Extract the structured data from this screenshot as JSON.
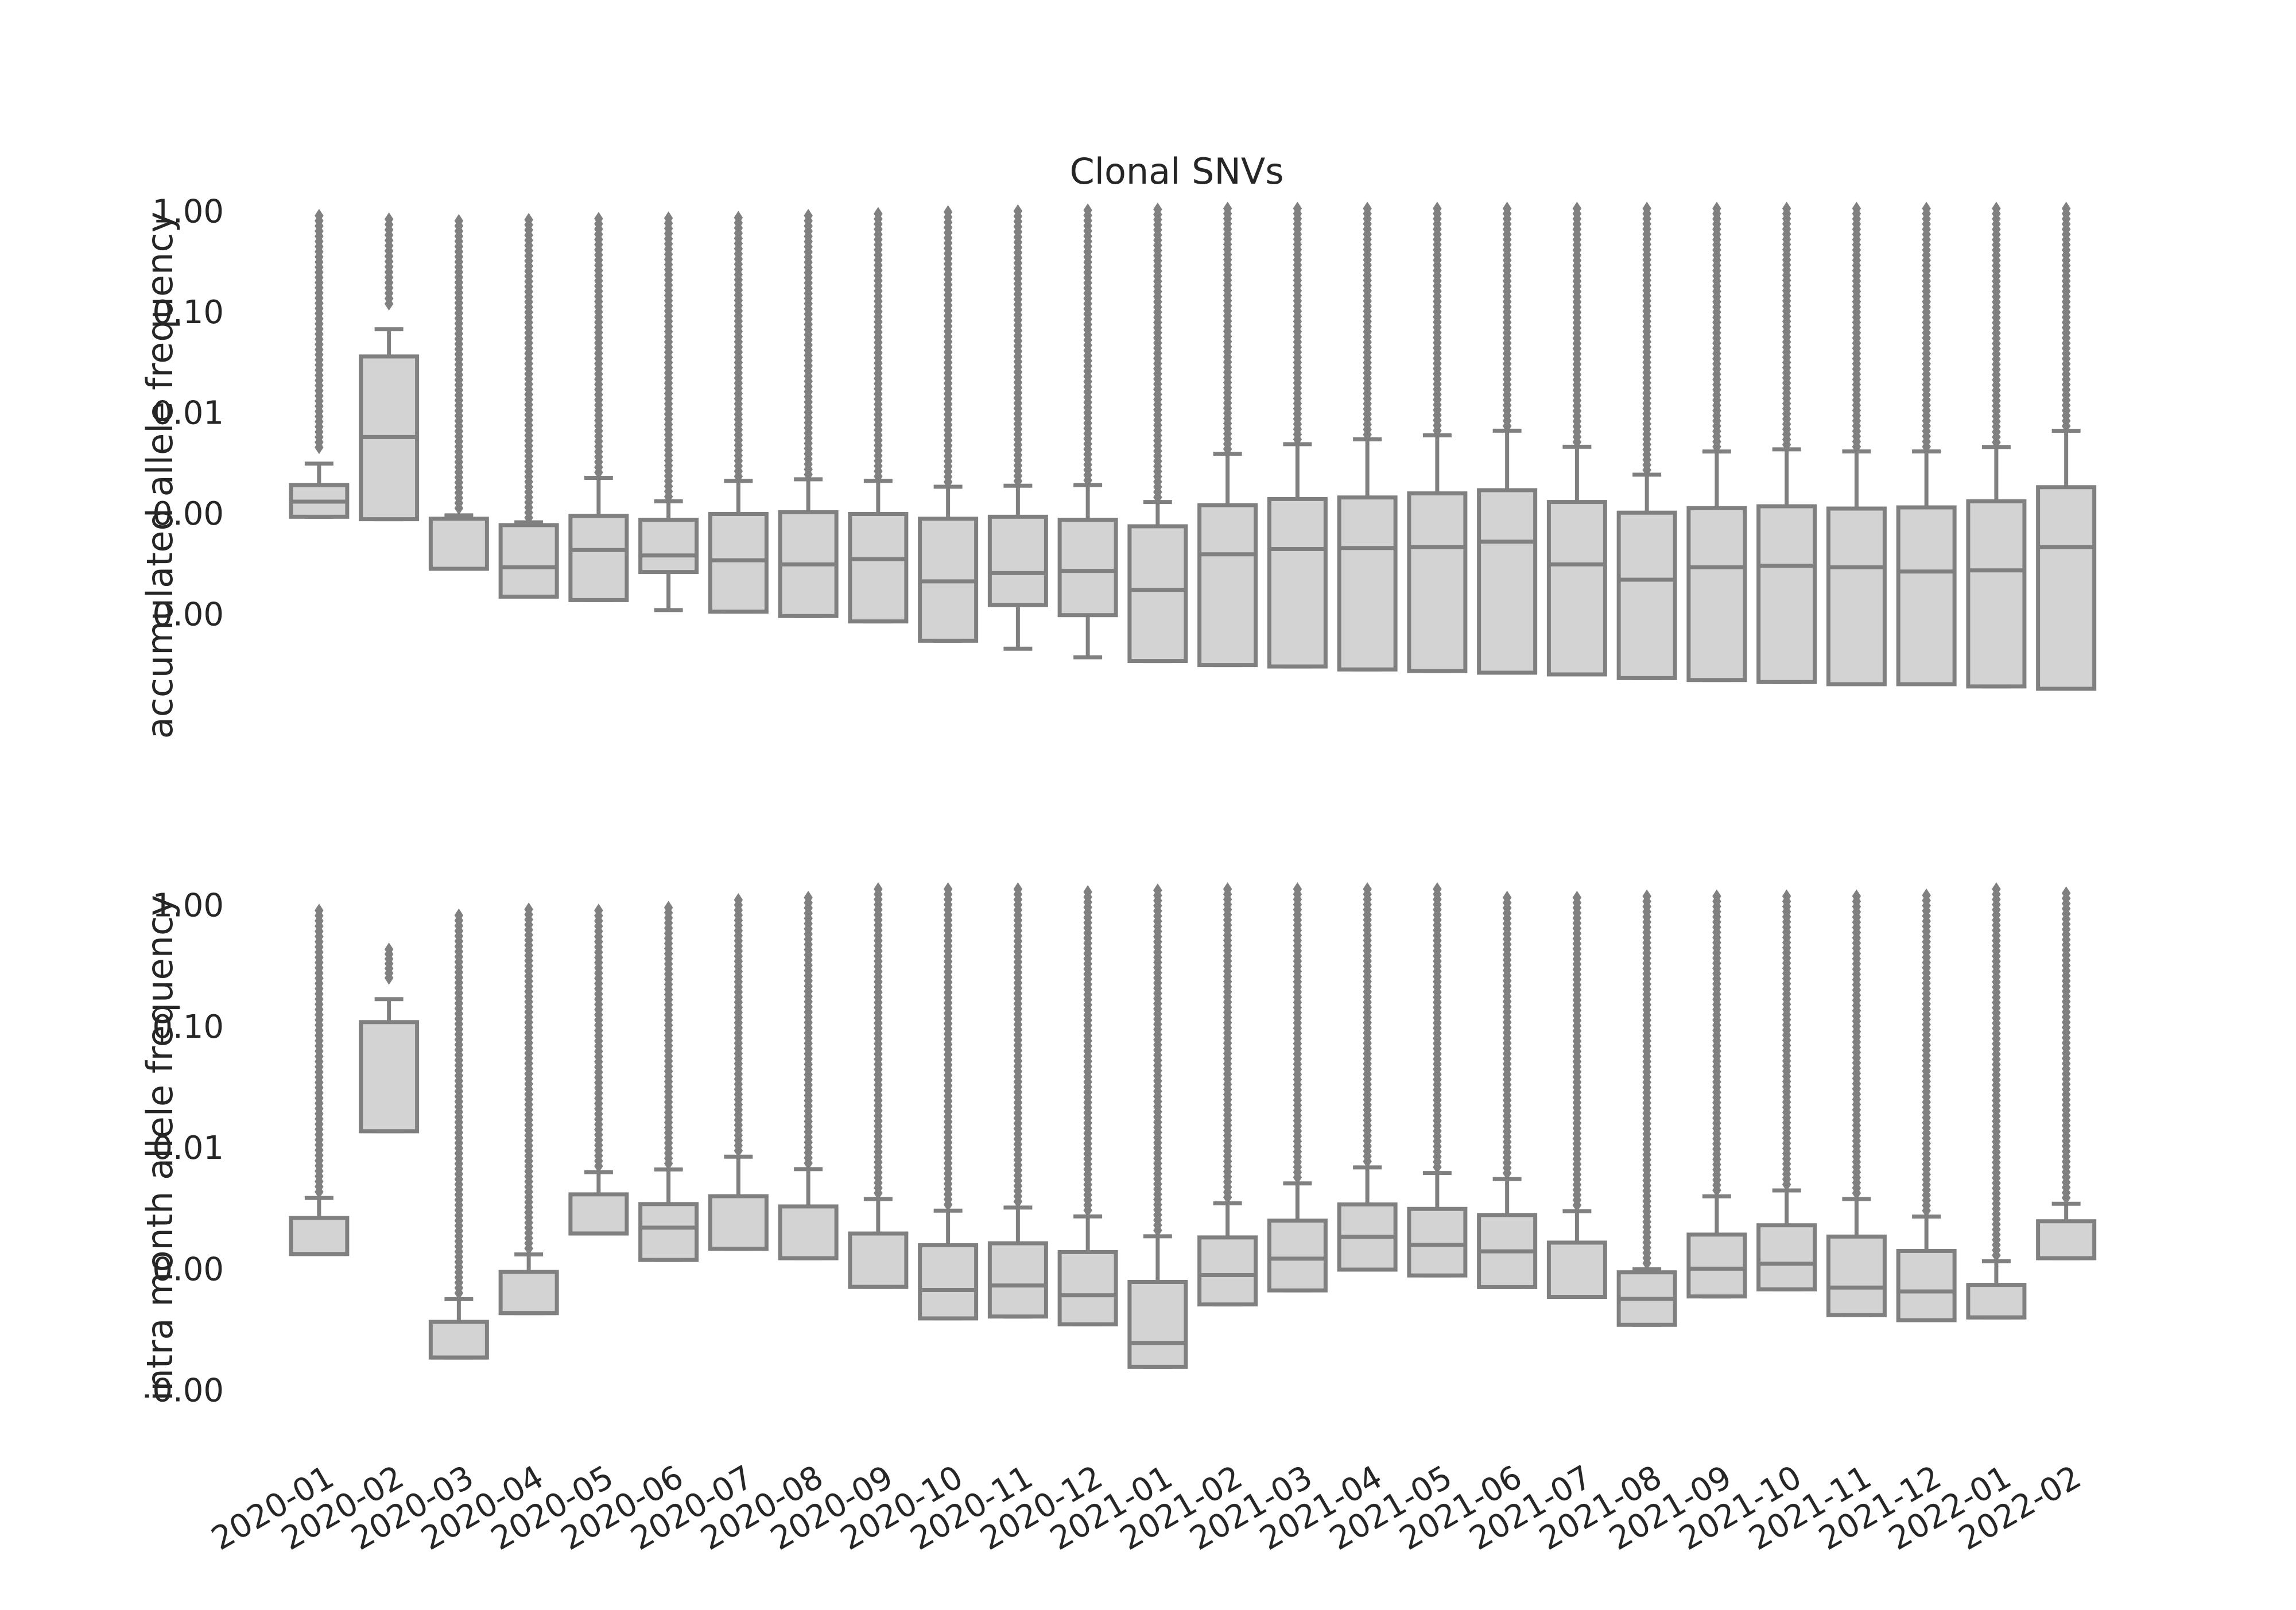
{
  "chart_data": {
    "type": "box",
    "title": "Clonal SNVs",
    "colors": {
      "box_fill": "#d3d3d3",
      "box_edge": "#808080",
      "outlier": "#808080"
    },
    "log_scale": true,
    "grid": false,
    "categories": [
      "2020-01",
      "2020-02",
      "2020-03",
      "2020-04",
      "2020-05",
      "2020-06",
      "2020-07",
      "2020-08",
      "2020-09",
      "2020-10",
      "2020-11",
      "2020-12",
      "2021-01",
      "2021-02",
      "2021-03",
      "2021-04",
      "2021-05",
      "2021-06",
      "2021-07",
      "2021-08",
      "2021-09",
      "2021-10",
      "2021-11",
      "2021-12",
      "2022-01",
      "2022-02"
    ],
    "panels": [
      {
        "ylabel": "accumulated allele frequency",
        "ytick_labels": [
          "1.00",
          "0.10",
          "0.01",
          "0.00",
          "0.00"
        ],
        "ytick_values": [
          1,
          0.1,
          0.01,
          0.001,
          0.0001
        ],
        "ylim": [
          4.25e-06,
          1.33
        ],
        "boxes": [
          {
            "whislo": 0.00092,
            "q1": 0.00092,
            "median": 0.0013,
            "q3": 0.0019,
            "whishi": 0.0031,
            "outlier_max": 0.9,
            "outlier_min": 0.0045
          },
          {
            "whislo": 0.00087,
            "q1": 0.00087,
            "median": 0.0057,
            "q3": 0.036,
            "whishi": 0.067,
            "outlier_max": 0.83,
            "outlier_min": 0.12
          },
          {
            "whislo": 0.00028,
            "q1": 0.00028,
            "median": 0.00028,
            "q3": 0.00088,
            "whishi": 0.00095,
            "outlier_max": 0.8,
            "outlier_min": 0.00112
          },
          {
            "whislo": 0.000148,
            "q1": 0.000148,
            "median": 0.00029,
            "q3": 0.00076,
            "whishi": 0.00081,
            "outlier_max": 0.82,
            "outlier_min": 0.0009
          },
          {
            "whislo": 0.000137,
            "q1": 0.000137,
            "median": 0.00043,
            "q3": 0.00094,
            "whishi": 0.00224,
            "outlier_max": 0.84,
            "outlier_min": 0.00254
          },
          {
            "whislo": 0.000109,
            "q1": 0.00026,
            "median": 0.00038,
            "q3": 0.00086,
            "whishi": 0.00131,
            "outlier_max": 0.85,
            "outlier_min": 0.00146
          },
          {
            "whislo": 0.000105,
            "q1": 0.000105,
            "median": 0.00034,
            "q3": 0.00098,
            "whishi": 0.00209,
            "outlier_max": 0.86,
            "outlier_min": 0.00232
          },
          {
            "whislo": 9.5e-05,
            "q1": 9.5e-05,
            "median": 0.00031,
            "q3": 0.00102,
            "whishi": 0.00217,
            "outlier_max": 0.9,
            "outlier_min": 0.00242
          },
          {
            "whislo": 8.4e-05,
            "q1": 8.4e-05,
            "median": 0.00035,
            "q3": 0.00098,
            "whishi": 0.00209,
            "outlier_max": 0.94,
            "outlier_min": 0.00232
          },
          {
            "whislo": 5.4e-05,
            "q1": 5.4e-05,
            "median": 0.00021,
            "q3": 0.00088,
            "whishi": 0.00183,
            "outlier_max": 0.98,
            "outlier_min": 0.00204
          },
          {
            "whislo": 4.5e-05,
            "q1": 0.000122,
            "median": 0.000254,
            "q3": 0.00092,
            "whishi": 0.00187,
            "outlier_max": 1.0,
            "outlier_min": 0.00208
          },
          {
            "whislo": 3.7e-05,
            "q1": 9.7e-05,
            "median": 0.000267,
            "q3": 0.00086,
            "whishi": 0.0019,
            "outlier_max": 1.02,
            "outlier_min": 0.00212
          },
          {
            "whislo": 3.4e-05,
            "q1": 3.4e-05,
            "median": 0.000173,
            "q3": 0.00074,
            "whishi": 0.00129,
            "outlier_max": 1.04,
            "outlier_min": 0.00144
          },
          {
            "whislo": 3.1e-05,
            "q1": 3.1e-05,
            "median": 0.00039,
            "q3": 0.0012,
            "whishi": 0.00389,
            "outlier_max": 1.06,
            "outlier_min": 0.00433
          },
          {
            "whislo": 3e-05,
            "q1": 3e-05,
            "median": 0.00044,
            "q3": 0.00138,
            "whishi": 0.00484,
            "outlier_max": 1.06,
            "outlier_min": 0.00539
          },
          {
            "whislo": 2.8e-05,
            "q1": 2.8e-05,
            "median": 0.00045,
            "q3": 0.00143,
            "whishi": 0.00541,
            "outlier_max": 1.06,
            "outlier_min": 0.00602
          },
          {
            "whislo": 2.7e-05,
            "q1": 2.7e-05,
            "median": 0.00046,
            "q3": 0.00157,
            "whishi": 0.00592,
            "outlier_max": 1.06,
            "outlier_min": 0.0066
          },
          {
            "whislo": 2.6e-05,
            "q1": 2.6e-05,
            "median": 0.00052,
            "q3": 0.00169,
            "whishi": 0.00659,
            "outlier_max": 1.06,
            "outlier_min": 0.00734
          },
          {
            "whislo": 2.5e-05,
            "q1": 2.5e-05,
            "median": 0.00031,
            "q3": 0.00129,
            "whishi": 0.00456,
            "outlier_max": 1.06,
            "outlier_min": 0.00508
          },
          {
            "whislo": 2.3e-05,
            "q1": 2.3e-05,
            "median": 0.000218,
            "q3": 0.00101,
            "whishi": 0.00241,
            "outlier_max": 1.06,
            "outlier_min": 0.00268
          },
          {
            "whislo": 2.2e-05,
            "q1": 2.2e-05,
            "median": 0.00029,
            "q3": 0.00112,
            "whishi": 0.00409,
            "outlier_max": 1.06,
            "outlier_min": 0.00456
          },
          {
            "whislo": 2.1e-05,
            "q1": 2.1e-05,
            "median": 0.0003,
            "q3": 0.00117,
            "whishi": 0.0043,
            "outlier_max": 1.06,
            "outlier_min": 0.00479
          },
          {
            "whislo": 2e-05,
            "q1": 2e-05,
            "median": 0.00029,
            "q3": 0.00111,
            "whishi": 0.0041,
            "outlier_max": 1.06,
            "outlier_min": 0.00457
          },
          {
            "whislo": 2e-05,
            "q1": 2e-05,
            "median": 0.000263,
            "q3": 0.00114,
            "whishi": 0.0041,
            "outlier_max": 1.06,
            "outlier_min": 0.00457
          },
          {
            "whislo": 1.9e-05,
            "q1": 1.9e-05,
            "median": 0.00027,
            "q3": 0.00131,
            "whishi": 0.00454,
            "outlier_max": 1.06,
            "outlier_min": 0.00506
          },
          {
            "whislo": 1.8e-05,
            "q1": 1.8e-05,
            "median": 0.00046,
            "q3": 0.00181,
            "whishi": 0.00658,
            "outlier_max": 1.06,
            "outlier_min": 0.00733
          }
        ]
      },
      {
        "ylabel": "intra month allele frequency",
        "ytick_labels": [
          "1.00",
          "0.10",
          "0.01",
          "0.00",
          "0.00"
        ],
        "ytick_values": [
          1,
          0.1,
          0.01,
          0.001,
          0.0001
        ],
        "ylim": [
          3.42e-05,
          2.0
        ],
        "boxes": [
          {
            "whislo": 0.00132,
            "q1": 0.00132,
            "median": 0.00132,
            "q3": 0.00262,
            "whishi": 0.00383,
            "outlier_max": 0.9,
            "outlier_min": 0.0043
          },
          {
            "whislo": 0.0136,
            "q1": 0.0136,
            "median": 0.0136,
            "q3": 0.108,
            "whishi": 0.167,
            "outlier_max": 0.43,
            "outlier_min": 0.25
          },
          {
            "whislo": 0.000185,
            "q1": 0.000185,
            "median": 0.000185,
            "q3": 0.000364,
            "whishi": 0.000561,
            "outlier_max": 0.82,
            "outlier_min": 0.00063
          },
          {
            "whislo": 0.00043,
            "q1": 0.00043,
            "median": 0.00043,
            "q3": 0.00094,
            "whishi": 0.00131,
            "outlier_max": 0.92,
            "outlier_min": 0.00147
          },
          {
            "whislo": 0.00195,
            "q1": 0.00195,
            "median": 0.00195,
            "q3": 0.0041,
            "whishi": 0.00625,
            "outlier_max": 0.9,
            "outlier_min": 0.00701
          },
          {
            "whislo": 0.00118,
            "q1": 0.00118,
            "median": 0.00218,
            "q3": 0.00341,
            "whishi": 0.00658,
            "outlier_max": 0.95,
            "outlier_min": 0.00738
          },
          {
            "whislo": 0.00146,
            "q1": 0.00146,
            "median": 0.00146,
            "q3": 0.00396,
            "whishi": 0.00838,
            "outlier_max": 1.1,
            "outlier_min": 0.0094
          },
          {
            "whislo": 0.00122,
            "q1": 0.00122,
            "median": 0.00122,
            "q3": 0.00326,
            "whishi": 0.00662,
            "outlier_max": 1.15,
            "outlier_min": 0.00742
          },
          {
            "whislo": 0.000707,
            "q1": 0.000707,
            "median": 0.000707,
            "q3": 0.00195,
            "whishi": 0.00375,
            "outlier_max": 1.35,
            "outlier_min": 0.0042
          },
          {
            "whislo": 0.000389,
            "q1": 0.000389,
            "median": 0.000667,
            "q3": 0.00156,
            "whishi": 0.00301,
            "outlier_max": 1.35,
            "outlier_min": 0.00338
          },
          {
            "whislo": 0.000403,
            "q1": 0.000403,
            "median": 0.000727,
            "q3": 0.00162,
            "whishi": 0.00319,
            "outlier_max": 1.35,
            "outlier_min": 0.00358
          },
          {
            "whislo": 0.000348,
            "q1": 0.000348,
            "median": 0.000604,
            "q3": 0.00137,
            "whishi": 0.0027,
            "outlier_max": 1.28,
            "outlier_min": 0.00303
          },
          {
            "whislo": 0.000155,
            "q1": 0.000155,
            "median": 0.000244,
            "q3": 0.000777,
            "whishi": 0.00185,
            "outlier_max": 1.32,
            "outlier_min": 0.00207
          },
          {
            "whislo": 0.000507,
            "q1": 0.000507,
            "median": 0.000885,
            "q3": 0.00181,
            "whishi": 0.00346,
            "outlier_max": 1.35,
            "outlier_min": 0.00388
          },
          {
            "whislo": 0.000662,
            "q1": 0.000662,
            "median": 0.00121,
            "q3": 0.00249,
            "whishi": 0.00505,
            "outlier_max": 1.35,
            "outlier_min": 0.00566
          },
          {
            "whislo": 0.000982,
            "q1": 0.000982,
            "median": 0.00183,
            "q3": 0.00339,
            "whishi": 0.00684,
            "outlier_max": 1.35,
            "outlier_min": 0.00767
          },
          {
            "whislo": 0.000879,
            "q1": 0.000879,
            "median": 0.00157,
            "q3": 0.00311,
            "whishi": 0.00615,
            "outlier_max": 1.35,
            "outlier_min": 0.00689
          },
          {
            "whislo": 0.000705,
            "q1": 0.000705,
            "median": 0.00139,
            "q3": 0.00277,
            "whishi": 0.00548,
            "outlier_max": 1.15,
            "outlier_min": 0.00614
          },
          {
            "whislo": 0.000585,
            "q1": 0.000585,
            "median": 0.000585,
            "q3": 0.00164,
            "whishi": 0.00298,
            "outlier_max": 1.15,
            "outlier_min": 0.00334
          },
          {
            "whislo": 0.000344,
            "q1": 0.000344,
            "median": 0.000563,
            "q3": 0.000933,
            "whishi": 0.00099,
            "outlier_max": 1.18,
            "outlier_min": 0.00111
          },
          {
            "whislo": 0.00059,
            "q1": 0.00059,
            "median": 0.000999,
            "q3": 0.00191,
            "whishi": 0.00395,
            "outlier_max": 1.18,
            "outlier_min": 0.00443
          },
          {
            "whislo": 0.000675,
            "q1": 0.000675,
            "median": 0.0011,
            "q3": 0.00228,
            "whishi": 0.00442,
            "outlier_max": 1.18,
            "outlier_min": 0.00495
          },
          {
            "whislo": 0.000414,
            "q1": 0.000414,
            "median": 0.000698,
            "q3": 0.00184,
            "whishi": 0.00375,
            "outlier_max": 1.18,
            "outlier_min": 0.0042
          },
          {
            "whislo": 0.000376,
            "q1": 0.000376,
            "median": 0.000649,
            "q3": 0.0014,
            "whishi": 0.00269,
            "outlier_max": 1.2,
            "outlier_min": 0.00301
          },
          {
            "whislo": 0.000396,
            "q1": 0.000396,
            "median": 0.000396,
            "q3": 0.000735,
            "whishi": 0.00115,
            "outlier_max": 1.35,
            "outlier_min": 0.00129
          },
          {
            "whislo": 0.00122,
            "q1": 0.00122,
            "median": 0.00122,
            "q3": 0.00246,
            "whishi": 0.00343,
            "outlier_max": 1.25,
            "outlier_min": 0.00384
          }
        ]
      }
    ]
  }
}
